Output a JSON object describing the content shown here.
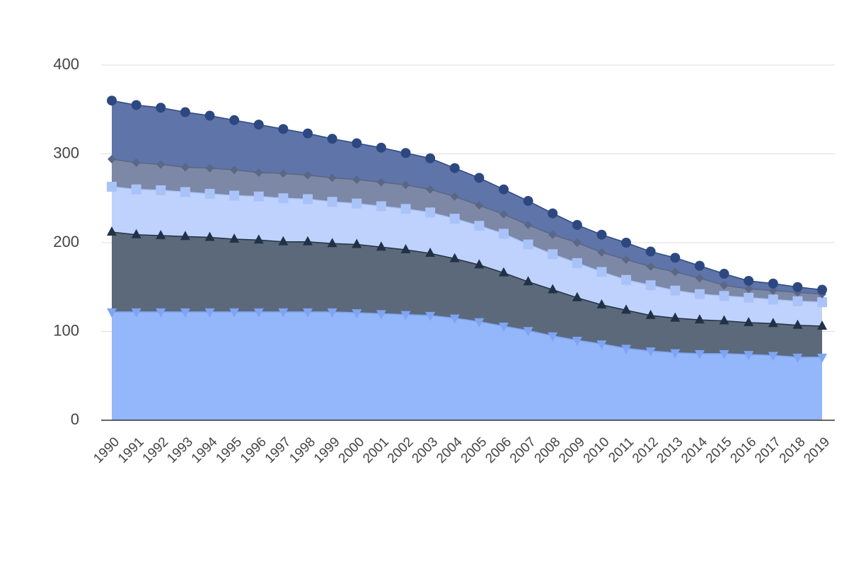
{
  "chart_data": {
    "type": "area",
    "stacked": true,
    "grid": true,
    "categories": [
      "1990",
      "1991",
      "1992",
      "1993",
      "1994",
      "1995",
      "1996",
      "1997",
      "1998",
      "1999",
      "2000",
      "2001",
      "2002",
      "2003",
      "2004",
      "2005",
      "2006",
      "2007",
      "2008",
      "2009",
      "2010",
      "2011",
      "2012",
      "2013",
      "2014",
      "2015",
      "2016",
      "2017",
      "2018",
      "2019"
    ],
    "ylim": [
      0,
      400
    ],
    "yticks": [
      0,
      100,
      200,
      300,
      400
    ],
    "series": [
      {
        "color": "#7ea4f2",
        "fill": "#94b6fa",
        "marker": "triangle-down",
        "values": [
          122,
          122,
          122,
          122,
          122,
          122,
          122,
          122,
          122,
          122,
          121,
          120,
          119,
          118,
          115,
          111,
          106,
          101,
          95,
          90,
          86,
          81,
          78,
          76,
          75,
          75,
          74,
          73,
          71,
          71
        ]
      },
      {
        "color": "#223246",
        "fill": "#5b697b",
        "marker": "triangle-up",
        "values": [
          90,
          87,
          86,
          85,
          84,
          82,
          81,
          79,
          79,
          77,
          77,
          75,
          73,
          70,
          67,
          64,
          60,
          55,
          52,
          48,
          44,
          43,
          40,
          39,
          38,
          37,
          36,
          36,
          36,
          35
        ]
      },
      {
        "color": "#a9c3f8",
        "fill": "#bfd2fd",
        "marker": "square",
        "values": [
          51,
          51,
          51,
          50,
          49,
          49,
          49,
          49,
          48,
          47,
          46,
          46,
          46,
          46,
          45,
          44,
          44,
          42,
          40,
          39,
          37,
          34,
          34,
          31,
          29,
          28,
          28,
          27,
          27,
          27
        ]
      },
      {
        "color": "#5a6785",
        "fill": "#7c88a6",
        "marker": "diamond",
        "values": [
          31,
          30,
          29,
          28,
          29,
          29,
          27,
          28,
          27,
          27,
          27,
          27,
          27,
          26,
          25,
          23,
          22,
          22,
          22,
          23,
          22,
          23,
          21,
          21,
          18,
          12,
          10,
          10,
          10,
          9
        ]
      },
      {
        "color": "#2d4881",
        "fill": "#5f74a8",
        "marker": "circle",
        "values": [
          66,
          65,
          64,
          62,
          59,
          56,
          54,
          50,
          47,
          44,
          41,
          39,
          36,
          35,
          32,
          31,
          28,
          27,
          24,
          20,
          20,
          19,
          17,
          16,
          14,
          13,
          9,
          8,
          6,
          5
        ]
      }
    ]
  }
}
